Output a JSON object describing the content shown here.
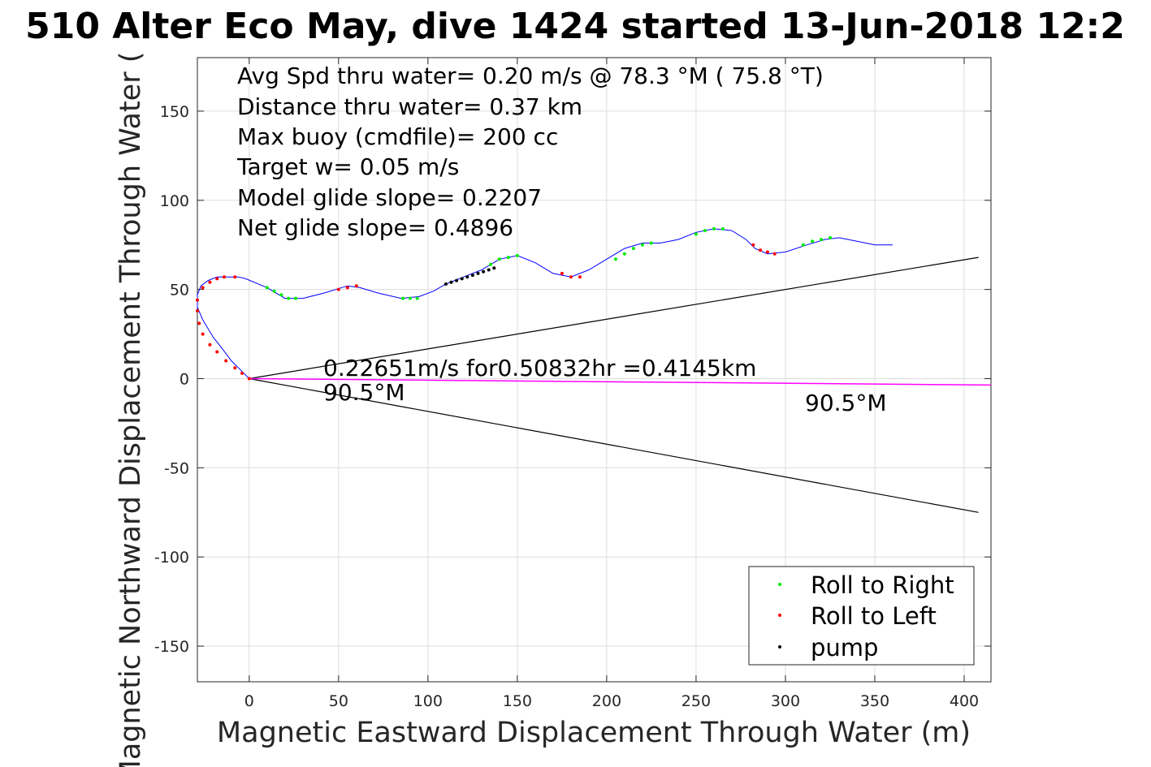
{
  "chart_data": {
    "type": "line",
    "title": "510 Alter Eco May, dive 1424 started 13-Jun-2018 12:2",
    "xlabel": "Magnetic Eastward Displacement Through Water (m)",
    "ylabel": "Magnetic Northward Displacement Through Water (",
    "xlim": [
      -29,
      415
    ],
    "ylim": [
      -170,
      180
    ],
    "xticks": [
      0,
      50,
      100,
      150,
      200,
      250,
      300,
      350,
      400
    ],
    "yticks": [
      -150,
      -100,
      -50,
      0,
      50,
      100,
      150
    ],
    "grid": true,
    "info_lines": [
      "Avg Spd thru water=  0.20 m/s @  78.3 °M ( 75.8 °T)",
      "Distance thru water=  0.37 km",
      "Max buoy (cmdfile)= 200 cc",
      "Target w= 0.05 m/s",
      "Model glide slope= 0.2207",
      "Net glide slope= 0.4896"
    ],
    "annotations": [
      "0.22651m/s for0.50832hr =0.4145km",
      "90.5°M",
      "90.5°M"
    ],
    "legend": {
      "placement": "bottom-right",
      "entries": [
        {
          "label": "Roll to Right",
          "color": "#00ee00"
        },
        {
          "label": "Roll to Left",
          "color": "#ff0000"
        },
        {
          "label": "pump",
          "color": "#000000"
        }
      ]
    },
    "colors": {
      "track": "#0000ff",
      "current": "#ff00ff",
      "cone": "#000000"
    },
    "series": [
      {
        "name": "track",
        "x": [
          0,
          -4,
          -10,
          -16,
          -20,
          -26,
          -29,
          -29,
          -27,
          -23,
          -18,
          -12,
          -6,
          -2,
          10,
          20,
          30,
          42,
          55,
          62,
          72,
          85,
          95,
          103,
          110,
          120,
          130,
          140,
          150,
          160,
          170,
          180,
          190,
          200,
          210,
          220,
          230,
          240,
          250,
          260,
          270,
          278,
          283,
          290,
          300,
          312,
          322,
          330,
          340,
          350,
          360
        ],
        "y": [
          0,
          4,
          10,
          18,
          23,
          33,
          40,
          47,
          52,
          55,
          57,
          57,
          57,
          56,
          51,
          45,
          45,
          48,
          52,
          51,
          48,
          45,
          46,
          49,
          53,
          57,
          61,
          67,
          69,
          65,
          59,
          57,
          61,
          67,
          73,
          76,
          76,
          78,
          82,
          84,
          83,
          78,
          73,
          70,
          71,
          75,
          78,
          79,
          77,
          75,
          75
        ]
      },
      {
        "name": "Roll to Right",
        "x": [
          10,
          14,
          18,
          22,
          26,
          86,
          90,
          94,
          135,
          140,
          145,
          150,
          205,
          210,
          215,
          220,
          225,
          250,
          255,
          260,
          265,
          310,
          315,
          320,
          325
        ],
        "y": [
          51,
          49,
          47,
          45,
          45,
          45,
          45,
          45,
          64,
          67,
          68,
          69,
          67,
          70,
          73,
          75,
          76,
          81,
          83,
          84,
          84,
          75,
          77,
          78,
          79
        ]
      },
      {
        "name": "Roll to Left",
        "x": [
          -8,
          -14,
          -18,
          -22,
          -26,
          -29,
          -29,
          -28,
          -26,
          -22,
          -18,
          -13,
          -8,
          -4,
          0,
          50,
          55,
          60,
          175,
          180,
          185,
          282,
          286,
          290,
          294
        ],
        "y": [
          57,
          57,
          56,
          54,
          51,
          44,
          38,
          31,
          25,
          19,
          15,
          10,
          6,
          3,
          0,
          50,
          51,
          52,
          59,
          57,
          57,
          75,
          72,
          71,
          70
        ]
      },
      {
        "name": "pump",
        "x": [
          110,
          113,
          116,
          119,
          122,
          125,
          128,
          131,
          134,
          137
        ],
        "y": [
          53,
          54,
          55,
          56,
          57,
          58,
          59,
          60,
          61,
          62
        ]
      },
      {
        "name": "current",
        "x": [
          0,
          415
        ],
        "y": [
          0,
          -3.6
        ]
      },
      {
        "name": "cone-upper",
        "x": [
          0,
          408
        ],
        "y": [
          0,
          68
        ]
      },
      {
        "name": "cone-lower",
        "x": [
          0,
          408
        ],
        "y": [
          0,
          -75
        ]
      }
    ]
  }
}
